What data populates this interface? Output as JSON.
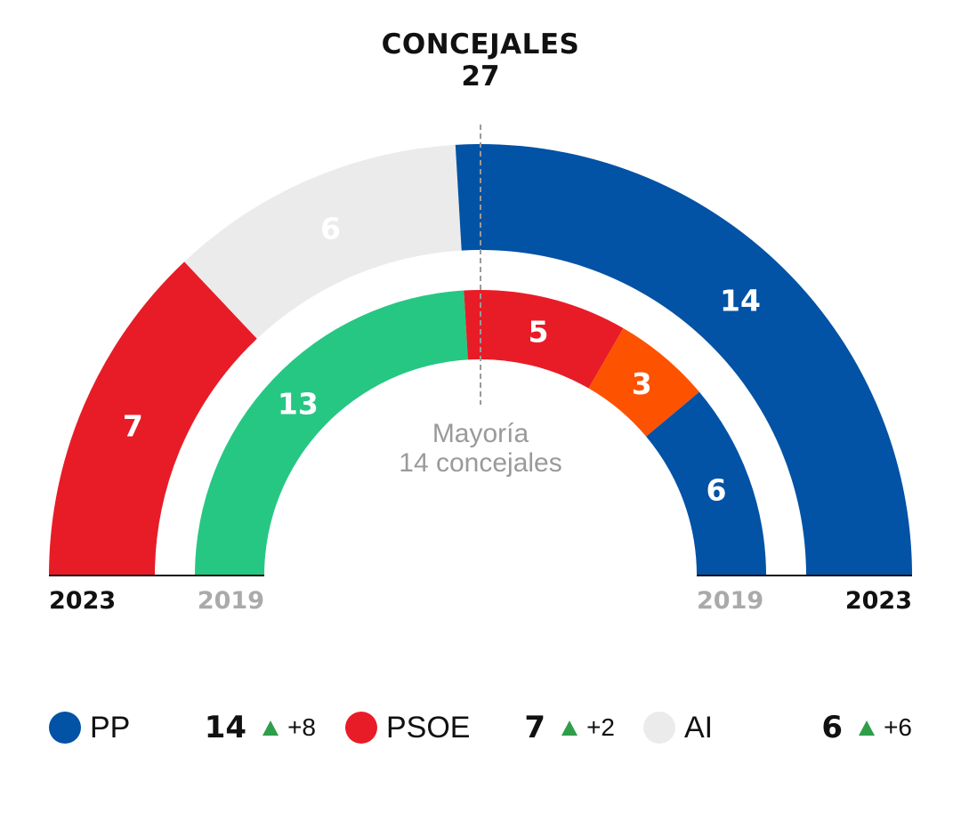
{
  "header": {
    "title": "CONCEJALES",
    "total": "27"
  },
  "colors": {
    "PP": "#0252a5",
    "PSOE": "#e81c27",
    "AI": "#ebebeb",
    "green": "#26c783",
    "orange": "#fd5200",
    "up": "#2e9e4a"
  },
  "chart_data": {
    "type": "parliament-semicircle",
    "title": "CONCEJALES",
    "total_seats": 27,
    "majority": {
      "label_line1": "Mayoría",
      "label_line2": "14 concejales",
      "seats": 14
    },
    "rings": [
      {
        "year": "2023",
        "series": [
          {
            "party": "PSOE",
            "seats": 7,
            "color": "#e81c27",
            "label_color": "#ffffff"
          },
          {
            "party": "AI",
            "seats": 6,
            "color": "#ebebeb",
            "label_color": "#ffffff"
          },
          {
            "party": "PP",
            "seats": 14,
            "color": "#0252a5",
            "label_color": "#ffffff"
          }
        ]
      },
      {
        "year": "2019",
        "series": [
          {
            "party": "",
            "seats": 13,
            "color": "#26c783",
            "label_color": "#ffffff"
          },
          {
            "party": "PSOE",
            "seats": 5,
            "color": "#e81c27",
            "label_color": "#ffffff"
          },
          {
            "party": "",
            "seats": 3,
            "color": "#fd5200",
            "label_color": "#ffffff"
          },
          {
            "party": "PP",
            "seats": 6,
            "color": "#0252a5",
            "label_color": "#ffffff"
          }
        ]
      }
    ]
  },
  "legend": [
    {
      "party": "PP",
      "seats": "14",
      "change": "+8",
      "color": "#0252a5"
    },
    {
      "party": "PSOE",
      "seats": "7",
      "change": "+2",
      "color": "#e81c27"
    },
    {
      "party": "AI",
      "seats": "6",
      "change": "+6",
      "color": "#ebebeb"
    }
  ]
}
